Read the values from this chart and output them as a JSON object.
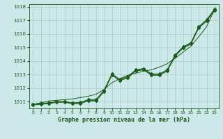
{
  "title": "Graphe pression niveau de la mer (hPa)",
  "bg_color": "#cce8e8",
  "grid_color": "#aacccc",
  "line_color": "#1a5c1a",
  "xlim": [
    -0.5,
    23.5
  ],
  "ylim": [
    1010.5,
    1018.2
  ],
  "xticks": [
    0,
    1,
    2,
    3,
    4,
    5,
    6,
    7,
    8,
    9,
    10,
    11,
    12,
    13,
    14,
    15,
    16,
    17,
    18,
    19,
    20,
    21,
    22,
    23
  ],
  "yticks": [
    1011,
    1012,
    1013,
    1014,
    1015,
    1016,
    1017,
    1018
  ],
  "series1": [
    1010.8,
    1010.9,
    1010.9,
    1011.0,
    1011.0,
    1010.9,
    1010.9,
    1011.1,
    1011.1,
    1011.8,
    1013.0,
    1012.6,
    1012.8,
    1013.3,
    1013.4,
    1013.0,
    1013.0,
    1013.3,
    1014.4,
    1015.0,
    1015.3,
    1016.5,
    1017.0,
    1017.8
  ],
  "series2": [
    1010.8,
    1010.85,
    1010.9,
    1011.0,
    1011.0,
    1010.9,
    1010.95,
    1011.15,
    1011.15,
    1011.85,
    1013.05,
    1012.65,
    1012.85,
    1013.35,
    1013.45,
    1013.05,
    1013.05,
    1013.35,
    1014.45,
    1015.05,
    1015.35,
    1016.55,
    1017.05,
    1017.85
  ],
  "series3": [
    1010.75,
    1010.8,
    1010.85,
    1010.95,
    1010.95,
    1010.85,
    1010.85,
    1011.05,
    1011.05,
    1011.75,
    1012.95,
    1012.55,
    1012.75,
    1013.25,
    1013.35,
    1012.95,
    1012.95,
    1013.25,
    1014.35,
    1014.95,
    1015.25,
    1016.45,
    1016.95,
    1017.75
  ],
  "trend": [
    1010.8,
    1010.9,
    1011.05,
    1011.1,
    1011.15,
    1011.2,
    1011.3,
    1011.4,
    1011.55,
    1011.9,
    1012.4,
    1012.7,
    1012.95,
    1013.1,
    1013.25,
    1013.35,
    1013.55,
    1013.8,
    1014.2,
    1014.65,
    1015.1,
    1015.8,
    1016.55,
    1017.8
  ]
}
